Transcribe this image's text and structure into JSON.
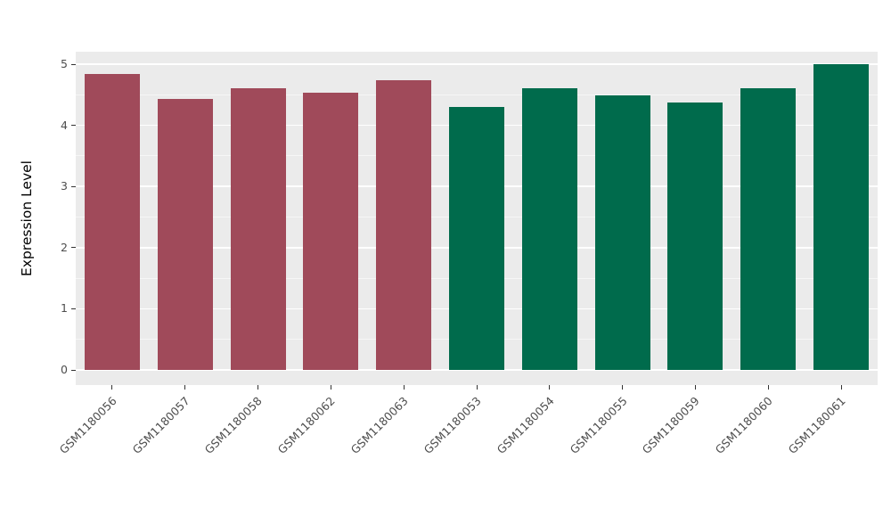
{
  "chart_data": {
    "type": "bar",
    "title": "",
    "xlabel": "",
    "ylabel": "Expression Level",
    "ylim": [
      0,
      5
    ],
    "yticks": [
      0,
      1,
      2,
      3,
      4,
      5
    ],
    "y_minor_ticks": [
      0.5,
      1.5,
      2.5,
      3.5,
      4.5
    ],
    "grid": true,
    "legend_position": "none",
    "panel_background": "#EBEBEB",
    "gridline_color": "#FFFFFF",
    "group_colors": {
      "group1": "#A04A5A",
      "group2": "#006B4C"
    },
    "categories": [
      "GSM1180056",
      "GSM1180057",
      "GSM1180058",
      "GSM1180062",
      "GSM1180063",
      "GSM1180053",
      "GSM1180054",
      "GSM1180055",
      "GSM1180059",
      "GSM1180060",
      "GSM1180061"
    ],
    "values": [
      4.84,
      4.43,
      4.6,
      4.53,
      4.74,
      4.3,
      4.61,
      4.49,
      4.38,
      4.61,
      5.0
    ],
    "bars": [
      {
        "label": "GSM1180056",
        "value": 4.84,
        "color": "#A04A5A"
      },
      {
        "label": "GSM1180057",
        "value": 4.43,
        "color": "#A04A5A"
      },
      {
        "label": "GSM1180058",
        "value": 4.6,
        "color": "#A04A5A"
      },
      {
        "label": "GSM1180062",
        "value": 4.53,
        "color": "#A04A5A"
      },
      {
        "label": "GSM1180063",
        "value": 4.74,
        "color": "#A04A5A"
      },
      {
        "label": "GSM1180053",
        "value": 4.3,
        "color": "#006B4C"
      },
      {
        "label": "GSM1180054",
        "value": 4.61,
        "color": "#006B4C"
      },
      {
        "label": "GSM1180055",
        "value": 4.49,
        "color": "#006B4C"
      },
      {
        "label": "GSM1180059",
        "value": 4.38,
        "color": "#006B4C"
      },
      {
        "label": "GSM1180060",
        "value": 4.61,
        "color": "#006B4C"
      },
      {
        "label": "GSM1180061",
        "value": 5.0,
        "color": "#006B4C"
      }
    ]
  }
}
